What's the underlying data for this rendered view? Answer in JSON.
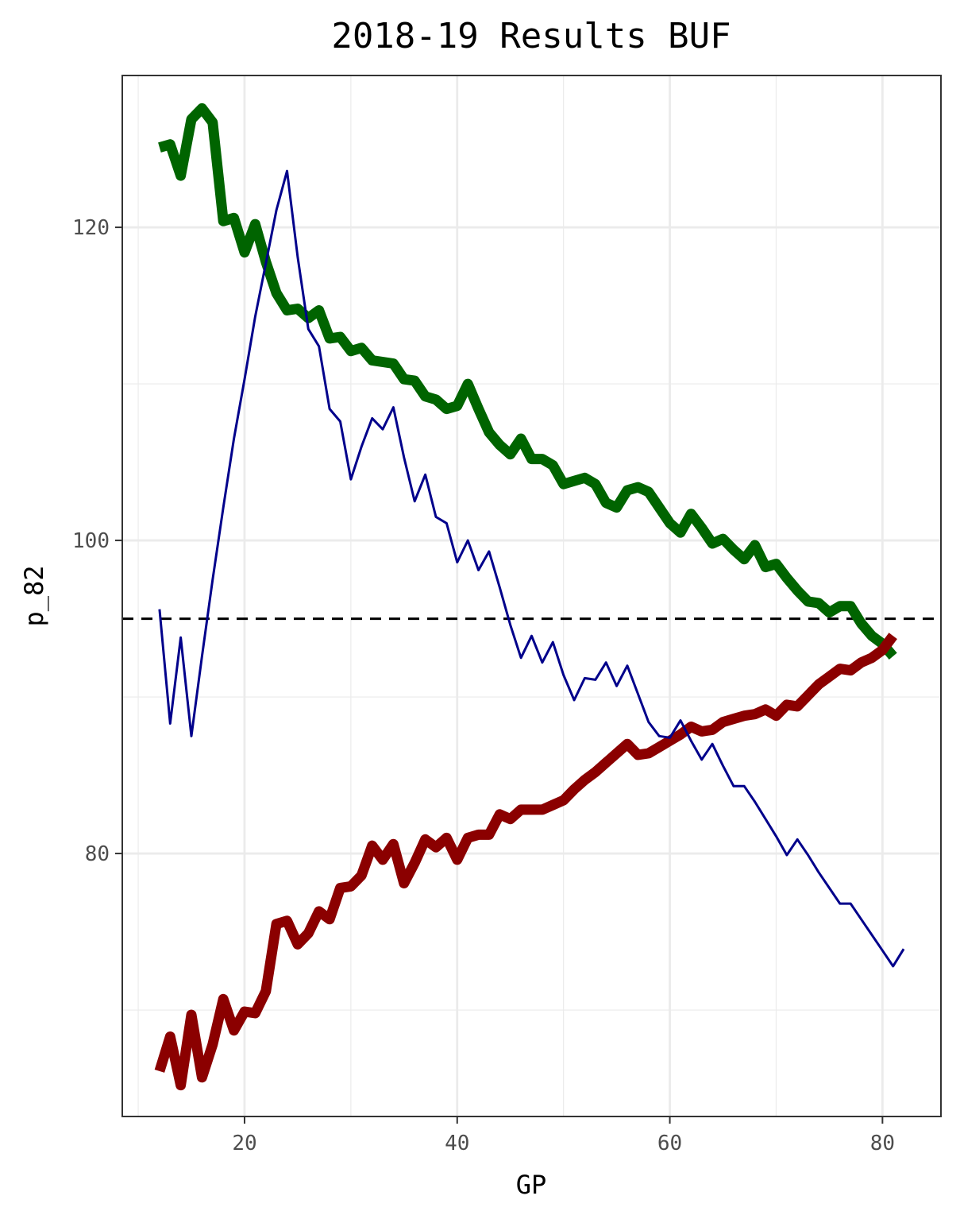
{
  "chart_data": {
    "type": "line",
    "title": "2018-19 Results BUF",
    "xlabel": "GP",
    "ylabel": "p_82",
    "xlim": [
      8.5,
      85.5
    ],
    "ylim": [
      63.2,
      129.7
    ],
    "x_ticks": [
      20,
      40,
      60,
      80
    ],
    "y_ticks": [
      80,
      100,
      120
    ],
    "grid": true,
    "legend": "none",
    "reference_line": {
      "y": 95,
      "style": "dashed",
      "color": "#000000"
    },
    "series": [
      {
        "color": "#006400",
        "style": "thick",
        "x": [
          12,
          13,
          14,
          15,
          16,
          17,
          18,
          19,
          20,
          21,
          22,
          23,
          24,
          25,
          26,
          27,
          28,
          29,
          30,
          31,
          32,
          33,
          34,
          35,
          36,
          37,
          38,
          39,
          40,
          41,
          42,
          43,
          44,
          45,
          46,
          47,
          48,
          49,
          50,
          51,
          52,
          53,
          54,
          55,
          56,
          57,
          58,
          59,
          60,
          61,
          62,
          63,
          64,
          65,
          66,
          67,
          68,
          69,
          70,
          71,
          72,
          73,
          74,
          75,
          76,
          77,
          78,
          79,
          80,
          81
        ],
        "values": [
          125.1,
          125.3,
          123.3,
          126.9,
          127.6,
          126.7,
          120.4,
          120.6,
          118.4,
          120.2,
          117.8,
          115.8,
          114.7,
          114.8,
          114.2,
          114.7,
          112.9,
          113.0,
          112.1,
          112.3,
          111.5,
          111.4,
          111.3,
          110.3,
          110.2,
          109.2,
          109.0,
          108.4,
          108.6,
          110.0,
          108.4,
          106.9,
          106.1,
          105.5,
          106.5,
          105.2,
          105.2,
          104.8,
          103.6,
          103.8,
          104.0,
          103.6,
          102.4,
          102.1,
          103.2,
          103.4,
          103.1,
          102.1,
          101.1,
          100.5,
          101.7,
          100.8,
          99.8,
          100.1,
          99.4,
          98.8,
          99.7,
          98.3,
          98.5,
          97.6,
          96.8,
          96.1,
          96.0,
          95.4,
          95.8,
          95.8,
          94.7,
          93.9,
          93.4,
          92.6
        ]
      },
      {
        "color": "#8b0000",
        "style": "thick",
        "x": [
          12,
          13,
          14,
          15,
          16,
          17,
          18,
          19,
          20,
          21,
          22,
          23,
          24,
          25,
          26,
          27,
          28,
          29,
          30,
          31,
          32,
          33,
          34,
          35,
          36,
          37,
          38,
          39,
          40,
          41,
          42,
          43,
          44,
          45,
          46,
          47,
          48,
          49,
          50,
          51,
          52,
          53,
          54,
          55,
          56,
          57,
          58,
          59,
          60,
          61,
          62,
          63,
          64,
          65,
          66,
          67,
          68,
          69,
          70,
          71,
          72,
          73,
          74,
          75,
          76,
          77,
          78,
          79,
          80,
          81
        ],
        "values": [
          66.1,
          68.3,
          65.2,
          69.7,
          65.7,
          67.8,
          70.7,
          68.7,
          69.9,
          69.8,
          71.2,
          75.5,
          75.7,
          74.2,
          74.9,
          76.3,
          75.8,
          77.8,
          77.9,
          78.6,
          80.5,
          79.6,
          80.6,
          78.1,
          79.4,
          80.9,
          80.4,
          81.0,
          79.6,
          81.0,
          81.2,
          81.2,
          82.5,
          82.2,
          82.8,
          82.8,
          82.8,
          83.1,
          83.4,
          84.1,
          84.7,
          85.2,
          85.8,
          86.4,
          87.0,
          86.3,
          86.4,
          86.8,
          87.2,
          87.6,
          88.1,
          87.8,
          87.9,
          88.4,
          88.6,
          88.8,
          88.9,
          89.2,
          88.8,
          89.5,
          89.4,
          90.1,
          90.8,
          91.3,
          91.8,
          91.7,
          92.2,
          92.5,
          93.0,
          93.9
        ]
      },
      {
        "color": "#00008b",
        "style": "thin",
        "x": [
          12,
          13,
          14,
          15,
          16,
          17,
          18,
          19,
          20,
          21,
          22,
          23,
          24,
          25,
          26,
          27,
          28,
          29,
          30,
          31,
          32,
          33,
          34,
          35,
          36,
          37,
          38,
          39,
          40,
          41,
          42,
          43,
          44,
          45,
          46,
          47,
          48,
          49,
          50,
          51,
          52,
          53,
          54,
          55,
          56,
          57,
          58,
          59,
          60,
          61,
          62,
          63,
          64,
          65,
          66,
          67,
          68,
          69,
          70,
          71,
          72,
          73,
          74,
          75,
          76,
          77,
          78,
          79,
          80,
          81,
          82
        ],
        "values": [
          95.6,
          88.3,
          93.8,
          87.5,
          92.6,
          97.5,
          102.1,
          106.5,
          110.3,
          114.3,
          117.7,
          121.1,
          123.6,
          118.1,
          113.5,
          112.4,
          108.4,
          107.6,
          103.9,
          106.0,
          107.8,
          107.1,
          108.5,
          105.3,
          102.5,
          104.2,
          101.5,
          101.1,
          98.6,
          100.0,
          98.1,
          99.3,
          97.0,
          94.6,
          92.5,
          93.9,
          92.2,
          93.5,
          91.4,
          89.8,
          91.2,
          91.1,
          92.2,
          90.7,
          92.0,
          90.2,
          88.4,
          87.5,
          87.4,
          88.5,
          87.2,
          86.0,
          87.0,
          85.6,
          84.3,
          84.3,
          83.3,
          82.2,
          81.1,
          79.9,
          80.9,
          79.9,
          78.8,
          77.8,
          76.8,
          76.8,
          75.8,
          74.8,
          73.8,
          72.8,
          73.9
        ]
      }
    ]
  }
}
